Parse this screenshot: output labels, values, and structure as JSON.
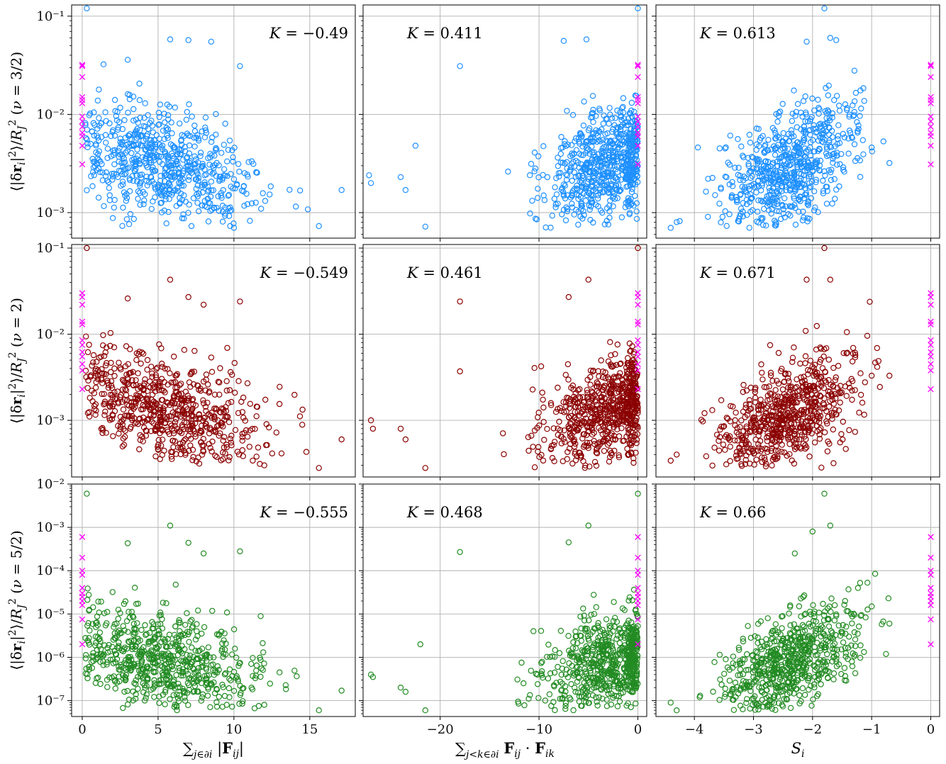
{
  "figure": {
    "row_labels": [
      "⟨|δr_i|²⟩/R_J²  (ν = 3/2)",
      "⟨|δr_i|²⟩/R_J²  (ν = 2)",
      "⟨|δr_i|²⟩/R_J²  (ν = 5/2)"
    ],
    "col_labels": [
      "∑_{j∈∂i} |F_ij|",
      "∑_{j<k∈∂i} F_ij · F_ik",
      "S_i"
    ]
  },
  "colors": {
    "row_colors": [
      "#1e90ff",
      "#8b0000",
      "#228b22"
    ],
    "outlier_marker": "#ff00ff",
    "grid": "#b0b0b0",
    "frame": "#000000"
  },
  "chart_data": [
    {
      "type": "scatter",
      "row": 0,
      "col": 0,
      "ylabel": "⟨|δr_i|²⟩/R_J²  (ν = 3/2)",
      "annotation": "K = −0.49",
      "xlim": [
        -0.7,
        18
      ],
      "yscale": "log",
      "ylim": [
        0.00055,
        0.13
      ],
      "xticks": [
        0,
        5,
        10,
        15
      ],
      "yticks": [
        {
          "value": 0.001,
          "label": "10⁻³"
        },
        {
          "value": 0.01,
          "label": "10⁻²"
        },
        {
          "value": 0.1,
          "label": "10⁻¹"
        }
      ],
      "show_x_tick_labels": false,
      "show_y_tick_labels": true,
      "cluster_center": [
        5.5,
        0.003
      ],
      "spread": [
        3.2,
        0.28
      ],
      "trend_slope": -0.04,
      "x_range": [
        0.2,
        17.2
      ],
      "y_range": [
        0.0007,
        0.12
      ],
      "n_points": 650,
      "highlights": [
        [
          0.3,
          0.12
        ],
        [
          3.0,
          0.036
        ],
        [
          5.8,
          0.058
        ],
        [
          7.0,
          0.057
        ],
        [
          8.5,
          0.055
        ],
        [
          10.4,
          0.031
        ],
        [
          17.1,
          0.0017
        ],
        [
          15.6,
          0.00073
        ],
        [
          10.0,
          0.0007
        ],
        [
          7.2,
          0.00073
        ]
      ],
      "outliers_x": 0,
      "outliers_y": [
        0.032,
        0.031,
        0.024,
        0.015,
        0.014,
        0.013,
        0.0095,
        0.0085,
        0.0075,
        0.0065,
        0.006,
        0.0048,
        0.0031
      ]
    },
    {
      "type": "scatter",
      "row": 0,
      "col": 1,
      "annotation": "K = 0.411",
      "xlim": [
        -27.8,
        0.9
      ],
      "yscale": "log",
      "ylim": [
        0.00055,
        0.13
      ],
      "xticks": [
        -20,
        -10,
        0
      ],
      "yticks": [
        {
          "value": 0.001,
          "label": "10⁻³"
        },
        {
          "value": 0.01,
          "label": "10⁻²"
        },
        {
          "value": 0.1,
          "label": "10⁻¹"
        }
      ],
      "show_x_tick_labels": false,
      "show_y_tick_labels": false,
      "cluster_center": [
        -2.8,
        0.0032
      ],
      "spread": [
        3.4,
        0.28
      ],
      "trend_slope": 0.035,
      "x_range": [
        -27.5,
        0
      ],
      "y_range": [
        0.0007,
        0.12
      ],
      "n_points": 650,
      "highlights": [
        [
          0.0,
          0.12
        ],
        [
          -18.0,
          0.031
        ],
        [
          -7.5,
          0.056
        ],
        [
          -5.2,
          0.058
        ],
        [
          -27.2,
          0.0024
        ],
        [
          -27.0,
          0.002
        ],
        [
          -24.0,
          0.0023
        ],
        [
          -23.5,
          0.0017
        ],
        [
          -21.5,
          0.00072
        ],
        [
          -22.5,
          0.0048
        ]
      ],
      "outliers_x": 0,
      "outliers_y": [
        0.032,
        0.031,
        0.024,
        0.015,
        0.014,
        0.013,
        0.0095,
        0.0085,
        0.0075,
        0.0065,
        0.006,
        0.0048,
        0.0031
      ]
    },
    {
      "type": "scatter",
      "row": 0,
      "col": 2,
      "annotation": "K = 0.613",
      "xlim": [
        -4.65,
        0.15
      ],
      "yscale": "log",
      "ylim": [
        0.00055,
        0.13
      ],
      "xticks": [
        -4,
        -3,
        -2,
        -1,
        0
      ],
      "yticks": [
        {
          "value": 0.001,
          "label": "10⁻³"
        },
        {
          "value": 0.01,
          "label": "10⁻²"
        },
        {
          "value": 0.1,
          "label": "10⁻¹"
        }
      ],
      "show_x_tick_labels": false,
      "show_y_tick_labels": false,
      "cluster_center": [
        -2.4,
        0.0028
      ],
      "spread": [
        0.6,
        0.28
      ],
      "trend_slope": 0.3,
      "x_range": [
        -4.5,
        -0.7
      ],
      "y_range": [
        0.0007,
        0.12
      ],
      "n_points": 650,
      "highlights": [
        [
          -1.8,
          0.12
        ],
        [
          -2.1,
          0.055
        ],
        [
          -1.7,
          0.06
        ],
        [
          -1.6,
          0.057
        ],
        [
          -4.4,
          0.0007
        ],
        [
          -4.3,
          0.0008
        ],
        [
          -1.0,
          0.0046
        ],
        [
          -0.7,
          0.0032
        ]
      ],
      "outliers_x": 0,
      "outliers_y": [
        0.032,
        0.031,
        0.024,
        0.015,
        0.014,
        0.013,
        0.0095,
        0.0085,
        0.0075,
        0.0065,
        0.006,
        0.0048,
        0.0031
      ]
    },
    {
      "type": "scatter",
      "row": 1,
      "col": 0,
      "ylabel": "⟨|δr_i|²⟩/R_J²  (ν = 2)",
      "annotation": "K = −0.549",
      "xlim": [
        -0.7,
        18
      ],
      "yscale": "log",
      "ylim": [
        0.00022,
        0.11
      ],
      "xticks": [
        0,
        5,
        10,
        15
      ],
      "yticks": [
        {
          "value": 0.001,
          "label": "10⁻³"
        },
        {
          "value": 0.01,
          "label": "10⁻²"
        },
        {
          "value": 0.1,
          "label": "10⁻¹"
        }
      ],
      "show_x_tick_labels": false,
      "show_y_tick_labels": true,
      "cluster_center": [
        5.5,
        0.0013
      ],
      "spread": [
        3.2,
        0.3
      ],
      "trend_slope": -0.045,
      "x_range": [
        0.2,
        17.2
      ],
      "y_range": [
        0.00028,
        0.1
      ],
      "n_points": 650,
      "highlights": [
        [
          0.3,
          0.1
        ],
        [
          3.0,
          0.026
        ],
        [
          5.8,
          0.043
        ],
        [
          7.0,
          0.027
        ],
        [
          8.0,
          0.022
        ],
        [
          10.4,
          0.024
        ],
        [
          17.1,
          0.0006
        ],
        [
          15.6,
          0.00028
        ],
        [
          12.0,
          0.0003
        ]
      ],
      "outliers_x": 0,
      "outliers_y": [
        0.03,
        0.027,
        0.022,
        0.014,
        0.013,
        0.0085,
        0.0075,
        0.0062,
        0.0055,
        0.0045,
        0.0038,
        0.0023
      ]
    },
    {
      "type": "scatter",
      "row": 1,
      "col": 1,
      "annotation": "K = 0.461",
      "xlim": [
        -27.8,
        0.9
      ],
      "yscale": "log",
      "ylim": [
        0.00022,
        0.11
      ],
      "xticks": [
        -20,
        -10,
        0
      ],
      "yticks": [
        {
          "value": 0.001,
          "label": "10⁻³"
        },
        {
          "value": 0.01,
          "label": "10⁻²"
        },
        {
          "value": 0.1,
          "label": "10⁻¹"
        }
      ],
      "show_x_tick_labels": false,
      "show_y_tick_labels": false,
      "cluster_center": [
        -2.8,
        0.0013
      ],
      "spread": [
        3.4,
        0.3
      ],
      "trend_slope": 0.04,
      "x_range": [
        -27.5,
        0
      ],
      "y_range": [
        0.00028,
        0.1
      ],
      "n_points": 650,
      "highlights": [
        [
          0.0,
          0.1
        ],
        [
          -18.0,
          0.024
        ],
        [
          -5.0,
          0.043
        ],
        [
          -7.0,
          0.027
        ],
        [
          -27.0,
          0.001
        ],
        [
          -26.8,
          0.0008
        ],
        [
          -24.0,
          0.0008
        ],
        [
          -23.5,
          0.0006
        ],
        [
          -21.5,
          0.00028
        ],
        [
          -18.0,
          0.0037
        ]
      ],
      "outliers_x": 0,
      "outliers_y": [
        0.03,
        0.027,
        0.022,
        0.014,
        0.013,
        0.0085,
        0.0075,
        0.0062,
        0.0055,
        0.0045,
        0.0038,
        0.0023
      ]
    },
    {
      "type": "scatter",
      "row": 1,
      "col": 2,
      "annotation": "K = 0.671",
      "xlim": [
        -4.65,
        0.15
      ],
      "yscale": "log",
      "ylim": [
        0.00022,
        0.11
      ],
      "xticks": [
        -4,
        -3,
        -2,
        -1,
        0
      ],
      "yticks": [
        {
          "value": 0.001,
          "label": "10⁻³"
        },
        {
          "value": 0.01,
          "label": "10⁻²"
        },
        {
          "value": 0.1,
          "label": "10⁻¹"
        }
      ],
      "show_x_tick_labels": false,
      "show_y_tick_labels": false,
      "cluster_center": [
        -2.4,
        0.0012
      ],
      "spread": [
        0.6,
        0.3
      ],
      "trend_slope": 0.36,
      "x_range": [
        -4.5,
        -0.7
      ],
      "y_range": [
        0.00028,
        0.1
      ],
      "n_points": 650,
      "highlights": [
        [
          -1.8,
          0.1
        ],
        [
          -2.1,
          0.043
        ],
        [
          -1.7,
          0.043
        ],
        [
          -4.4,
          0.00034
        ],
        [
          -4.3,
          0.0004
        ],
        [
          -1.0,
          0.0033
        ],
        [
          -0.7,
          0.0033
        ]
      ],
      "outliers_x": 0,
      "outliers_y": [
        0.03,
        0.027,
        0.022,
        0.014,
        0.013,
        0.0085,
        0.0075,
        0.0062,
        0.0055,
        0.0045,
        0.0038,
        0.0023
      ]
    },
    {
      "type": "scatter",
      "row": 2,
      "col": 0,
      "ylabel": "⟨|δr_i|²⟩/R_J²  (ν = 5/2)",
      "annotation": "K = −0.555",
      "xlim": [
        -0.7,
        18
      ],
      "yscale": "log",
      "ylim": [
        4.3e-08,
        0.01
      ],
      "xticks": [
        0,
        5,
        10,
        15
      ],
      "yticks": [
        {
          "value": 1e-07,
          "label": "10⁻⁷"
        },
        {
          "value": 1e-06,
          "label": "10⁻⁶"
        },
        {
          "value": 1e-05,
          "label": "10⁻⁵"
        },
        {
          "value": 0.0001,
          "label": "10⁻⁴"
        },
        {
          "value": 0.001,
          "label": "10⁻³"
        },
        {
          "value": 0.01,
          "label": "10⁻²"
        }
      ],
      "show_x_tick_labels": true,
      "show_y_tick_labels": true,
      "xlabel": "∑_{j∈∂i} |F_ij|",
      "cluster_center": [
        5.5,
        8e-07
      ],
      "spread": [
        3.2,
        0.55
      ],
      "trend_slope": -0.08,
      "x_range": [
        0.2,
        17.2
      ],
      "y_range": [
        6e-08,
        0.006
      ],
      "n_points": 650,
      "highlights": [
        [
          0.3,
          0.006
        ],
        [
          3.0,
          0.00043
        ],
        [
          5.8,
          0.0011
        ],
        [
          7.0,
          0.00044
        ],
        [
          8.0,
          0.00025
        ],
        [
          10.4,
          0.00028
        ],
        [
          17.1,
          1.7e-07
        ],
        [
          15.6,
          6e-08
        ],
        [
          12.0,
          8e-08
        ]
      ],
      "outliers_x": 0,
      "outliers_y": [
        0.0006,
        0.0002,
        0.0001,
        8e-05,
        4e-05,
        3e-05,
        2.5e-05,
        2e-05,
        1.6e-05,
        7.5e-06,
        2e-06
      ]
    },
    {
      "type": "scatter",
      "row": 2,
      "col": 1,
      "annotation": "K = 0.468",
      "xlim": [
        -27.8,
        0.9
      ],
      "yscale": "log",
      "ylim": [
        4.3e-08,
        0.01
      ],
      "xticks": [
        -20,
        -10,
        0
      ],
      "yticks": [
        {
          "value": 1e-07,
          "label": "10⁻⁷"
        },
        {
          "value": 1e-06,
          "label": "10⁻⁶"
        },
        {
          "value": 1e-05,
          "label": "10⁻⁵"
        },
        {
          "value": 0.0001,
          "label": "10⁻⁴"
        },
        {
          "value": 0.001,
          "label": "10⁻³"
        },
        {
          "value": 0.01,
          "label": "10⁻²"
        }
      ],
      "show_x_tick_labels": true,
      "show_y_tick_labels": false,
      "xlabel": "∑_{j<k∈∂i} F_ij · F_ik",
      "cluster_center": [
        -2.8,
        8e-07
      ],
      "spread": [
        3.4,
        0.55
      ],
      "trend_slope": 0.07,
      "x_range": [
        -27.5,
        0
      ],
      "y_range": [
        6e-08,
        0.006
      ],
      "n_points": 650,
      "highlights": [
        [
          0.0,
          0.006
        ],
        [
          -18.0,
          0.00027
        ],
        [
          -5.0,
          0.0011
        ],
        [
          -7.0,
          0.00045
        ],
        [
          -27.0,
          4e-07
        ],
        [
          -26.8,
          3.5e-07
        ],
        [
          -24.0,
          2e-07
        ],
        [
          -23.5,
          1.6e-07
        ],
        [
          -21.5,
          6e-08
        ],
        [
          -22.0,
          2e-06
        ]
      ],
      "outliers_x": 0,
      "outliers_y": [
        0.0006,
        0.0002,
        0.0001,
        8e-05,
        4e-05,
        3e-05,
        2.5e-05,
        2e-05,
        1.6e-05,
        7.5e-06,
        2e-06
      ]
    },
    {
      "type": "scatter",
      "row": 2,
      "col": 2,
      "annotation": "K = 0.66",
      "xlim": [
        -4.65,
        0.15
      ],
      "yscale": "log",
      "ylim": [
        4.3e-08,
        0.01
      ],
      "xticks": [
        -4,
        -3,
        -2,
        -1,
        0
      ],
      "yticks": [
        {
          "value": 1e-07,
          "label": "10⁻⁷"
        },
        {
          "value": 1e-06,
          "label": "10⁻⁶"
        },
        {
          "value": 1e-05,
          "label": "10⁻⁵"
        },
        {
          "value": 0.0001,
          "label": "10⁻⁴"
        },
        {
          "value": 0.001,
          "label": "10⁻³"
        },
        {
          "value": 0.01,
          "label": "10⁻²"
        }
      ],
      "show_x_tick_labels": true,
      "show_y_tick_labels": false,
      "xlabel": "S_i",
      "cluster_center": [
        -2.4,
        7e-07
      ],
      "spread": [
        0.6,
        0.55
      ],
      "trend_slope": 0.7,
      "x_range": [
        -4.5,
        -0.7
      ],
      "y_range": [
        6e-08,
        0.006
      ],
      "n_points": 650,
      "highlights": [
        [
          -1.8,
          0.006
        ],
        [
          -2.0,
          0.0008
        ],
        [
          -1.7,
          0.0011
        ],
        [
          -2.3,
          0.00025
        ],
        [
          -4.4,
          9e-08
        ],
        [
          -4.3,
          6e-08
        ],
        [
          -0.7,
          6e-06
        ],
        [
          -1.0,
          1.5e-05
        ]
      ],
      "outliers_x": 0,
      "outliers_y": [
        0.0006,
        0.0002,
        0.0001,
        8e-05,
        4e-05,
        3e-05,
        2.5e-05,
        2e-05,
        1.6e-05,
        7.5e-06,
        2e-06
      ]
    }
  ]
}
